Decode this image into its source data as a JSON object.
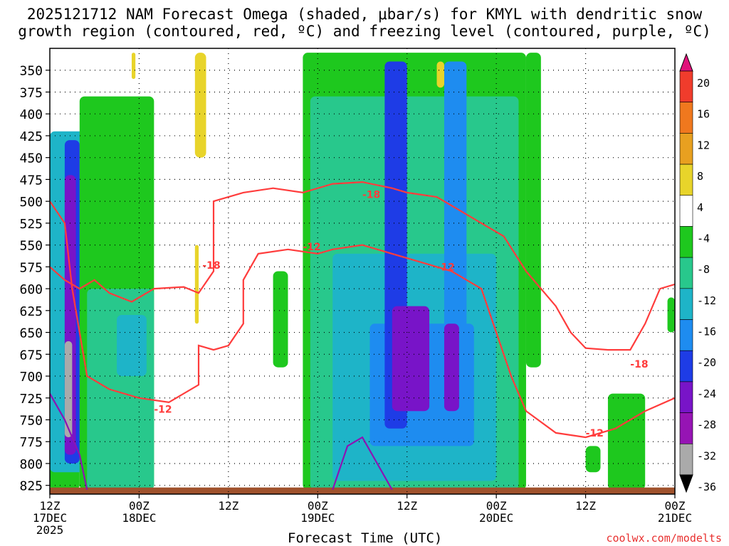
{
  "title": {
    "line1": "2025121712 NAM Forecast Omega (shaded, μbar/s) for KMYL with dendritic snow",
    "line2": "growth region (contoured, red, ºC) and freezing level (contoured, purple, ºC)"
  },
  "x_axis": {
    "label": "Forecast Time (UTC)",
    "ticks": [
      {
        "h": 0,
        "line1": "12Z",
        "line2": "17DEC",
        "line3": "2025"
      },
      {
        "h": 12,
        "line1": "00Z",
        "line2": "18DEC",
        "line3": ""
      },
      {
        "h": 24,
        "line1": "12Z",
        "line2": "",
        "line3": ""
      },
      {
        "h": 36,
        "line1": "00Z",
        "line2": "19DEC",
        "line3": ""
      },
      {
        "h": 48,
        "line1": "12Z",
        "line2": "",
        "line3": ""
      },
      {
        "h": 60,
        "line1": "00Z",
        "line2": "20DEC",
        "line3": ""
      },
      {
        "h": 72,
        "line1": "12Z",
        "line2": "",
        "line3": ""
      },
      {
        "h": 84,
        "line1": "00Z",
        "line2": "21DEC",
        "line3": ""
      }
    ]
  },
  "credit": "coolwx.com/modelts",
  "chart_data": {
    "type": "heatmap",
    "x_unit": "forecast hour",
    "x_range": [
      0,
      84
    ],
    "y_range_hpa": [
      325,
      835
    ],
    "pressure_levels": [
      350,
      375,
      400,
      425,
      450,
      475,
      500,
      525,
      550,
      575,
      600,
      625,
      650,
      675,
      700,
      725,
      750,
      775,
      800,
      825
    ],
    "colorbar": {
      "labels": [
        "20",
        "16",
        "12",
        "8",
        "4",
        "-4",
        "-8",
        "-12",
        "-16",
        "-20",
        "-24",
        "-28",
        "-32",
        "-36"
      ],
      "colors": [
        "#e0117a",
        "#f03c2c",
        "#f0781e",
        "#e8a020",
        "#e8d42a",
        "#ffffff",
        "#1ec81e",
        "#28c88c",
        "#1eb4c8",
        "#1e8cf0",
        "#1e3ce6",
        "#7814c8",
        "#9614b4",
        "#aaaaaa",
        "#000000"
      ]
    },
    "omega_regions": [
      {
        "level": -8,
        "t0": 0,
        "t1": 4,
        "p0": 450,
        "p1": 830
      },
      {
        "level": -16,
        "t0": 0,
        "t1": 5,
        "p0": 420,
        "p1": 810
      },
      {
        "level": -24,
        "t0": 2,
        "t1": 4,
        "p0": 430,
        "p1": 800
      },
      {
        "level": -28,
        "t0": 2,
        "t1": 3.5,
        "p0": 470,
        "p1": 790
      },
      {
        "level": -36,
        "t0": 2,
        "t1": 3,
        "p0": 660,
        "p1": 770
      },
      {
        "level": -8,
        "t0": 4,
        "t1": 14,
        "p0": 380,
        "p1": 830
      },
      {
        "level": -12,
        "t0": 5,
        "t1": 14,
        "p0": 600,
        "p1": 830
      },
      {
        "level": -16,
        "t0": 9,
        "t1": 13,
        "p0": 630,
        "p1": 700
      },
      {
        "level": -8,
        "t0": 30,
        "t1": 32,
        "p0": 580,
        "p1": 690
      },
      {
        "level": -8,
        "t0": 34,
        "t1": 64,
        "p0": 330,
        "p1": 830
      },
      {
        "level": -12,
        "t0": 35,
        "t1": 63,
        "p0": 380,
        "p1": 830
      },
      {
        "level": -16,
        "t0": 38,
        "t1": 60,
        "p0": 560,
        "p1": 820
      },
      {
        "level": -20,
        "t0": 43,
        "t1": 57,
        "p0": 640,
        "p1": 780
      },
      {
        "level": -24,
        "t0": 45,
        "t1": 48,
        "p0": 340,
        "p1": 760
      },
      {
        "level": -28,
        "t0": 46,
        "t1": 51,
        "p0": 620,
        "p1": 740
      },
      {
        "level": -20,
        "t0": 53,
        "t1": 56,
        "p0": 340,
        "p1": 760
      },
      {
        "level": -28,
        "t0": 53,
        "t1": 55,
        "p0": 640,
        "p1": 740
      },
      {
        "level": -8,
        "t0": 64,
        "t1": 66,
        "p0": 330,
        "p1": 690
      },
      {
        "level": -8,
        "t0": 72,
        "t1": 74,
        "p0": 780,
        "p1": 810
      },
      {
        "level": -8,
        "t0": 75,
        "t1": 80,
        "p0": 720,
        "p1": 830
      },
      {
        "level": -8,
        "t0": 83,
        "t1": 84,
        "p0": 610,
        "p1": 650
      },
      {
        "level": 4,
        "t0": 11,
        "t1": 11.5,
        "p0": 330,
        "p1": 360
      },
      {
        "level": 4,
        "t0": 19.5,
        "t1": 21,
        "p0": 330,
        "p1": 450
      },
      {
        "level": 4,
        "t0": 19.5,
        "t1": 20,
        "p0": 550,
        "p1": 640
      },
      {
        "level": 4,
        "t0": 52,
        "t1": 53,
        "p0": 340,
        "p1": 370
      }
    ],
    "contours": [
      {
        "name": "-18",
        "color": "#ff3c3c",
        "labels": [
          {
            "text": "-18",
            "t": 20.5,
            "p": 573
          },
          {
            "text": "-18",
            "t": 42,
            "p": 492
          },
          {
            "text": "-18",
            "t": 78,
            "p": 686
          }
        ],
        "points": [
          [
            0,
            575
          ],
          [
            2,
            590
          ],
          [
            4,
            600
          ],
          [
            6,
            590
          ],
          [
            8,
            605
          ],
          [
            11,
            615
          ],
          [
            14,
            600
          ],
          [
            18,
            598
          ],
          [
            20,
            605
          ],
          [
            22,
            580
          ],
          [
            22,
            500
          ],
          [
            26,
            490
          ],
          [
            30,
            485
          ],
          [
            34,
            490
          ],
          [
            38,
            480
          ],
          [
            42,
            478
          ],
          [
            46,
            485
          ],
          [
            48,
            490
          ],
          [
            52,
            495
          ],
          [
            55,
            510
          ],
          [
            58,
            525
          ],
          [
            61,
            540
          ],
          [
            64,
            580
          ],
          [
            68,
            620
          ],
          [
            70,
            650
          ],
          [
            72,
            668
          ],
          [
            75,
            670
          ],
          [
            78,
            670
          ],
          [
            80,
            640
          ],
          [
            82,
            600
          ],
          [
            84,
            595
          ]
        ]
      },
      {
        "name": "-12",
        "color": "#ff3c3c",
        "labels": [
          {
            "text": "-12",
            "t": 14,
            "p": 738
          },
          {
            "text": "-12",
            "t": 34,
            "p": 552
          },
          {
            "text": "-12",
            "t": 52,
            "p": 575
          },
          {
            "text": "-12",
            "t": 72,
            "p": 765
          }
        ],
        "points": [
          [
            0,
            500
          ],
          [
            2,
            525
          ],
          [
            3,
            600
          ],
          [
            4,
            650
          ],
          [
            5,
            700
          ],
          [
            8,
            715
          ],
          [
            12,
            725
          ],
          [
            16,
            730
          ],
          [
            20,
            710
          ],
          [
            20,
            665
          ],
          [
            22,
            670
          ],
          [
            24,
            665
          ],
          [
            26,
            640
          ],
          [
            26,
            590
          ],
          [
            28,
            560
          ],
          [
            32,
            555
          ],
          [
            36,
            560
          ],
          [
            38,
            555
          ],
          [
            42,
            550
          ],
          [
            46,
            560
          ],
          [
            50,
            570
          ],
          [
            54,
            580
          ],
          [
            58,
            600
          ],
          [
            60,
            650
          ],
          [
            62,
            700
          ],
          [
            64,
            740
          ],
          [
            68,
            765
          ],
          [
            72,
            770
          ],
          [
            76,
            760
          ],
          [
            80,
            740
          ],
          [
            84,
            725
          ]
        ]
      },
      {
        "name": "freezing",
        "color": "#8c14b4",
        "points": [
          [
            0,
            720
          ],
          [
            2,
            750
          ],
          [
            4,
            790
          ],
          [
            5,
            830
          ]
        ]
      },
      {
        "name": "freezing2",
        "color": "#8c14b4",
        "points": [
          [
            38,
            830
          ],
          [
            40,
            780
          ],
          [
            42,
            770
          ],
          [
            44,
            800
          ],
          [
            46,
            830
          ]
        ]
      }
    ],
    "terrain_hpa": 825,
    "grid": true
  }
}
